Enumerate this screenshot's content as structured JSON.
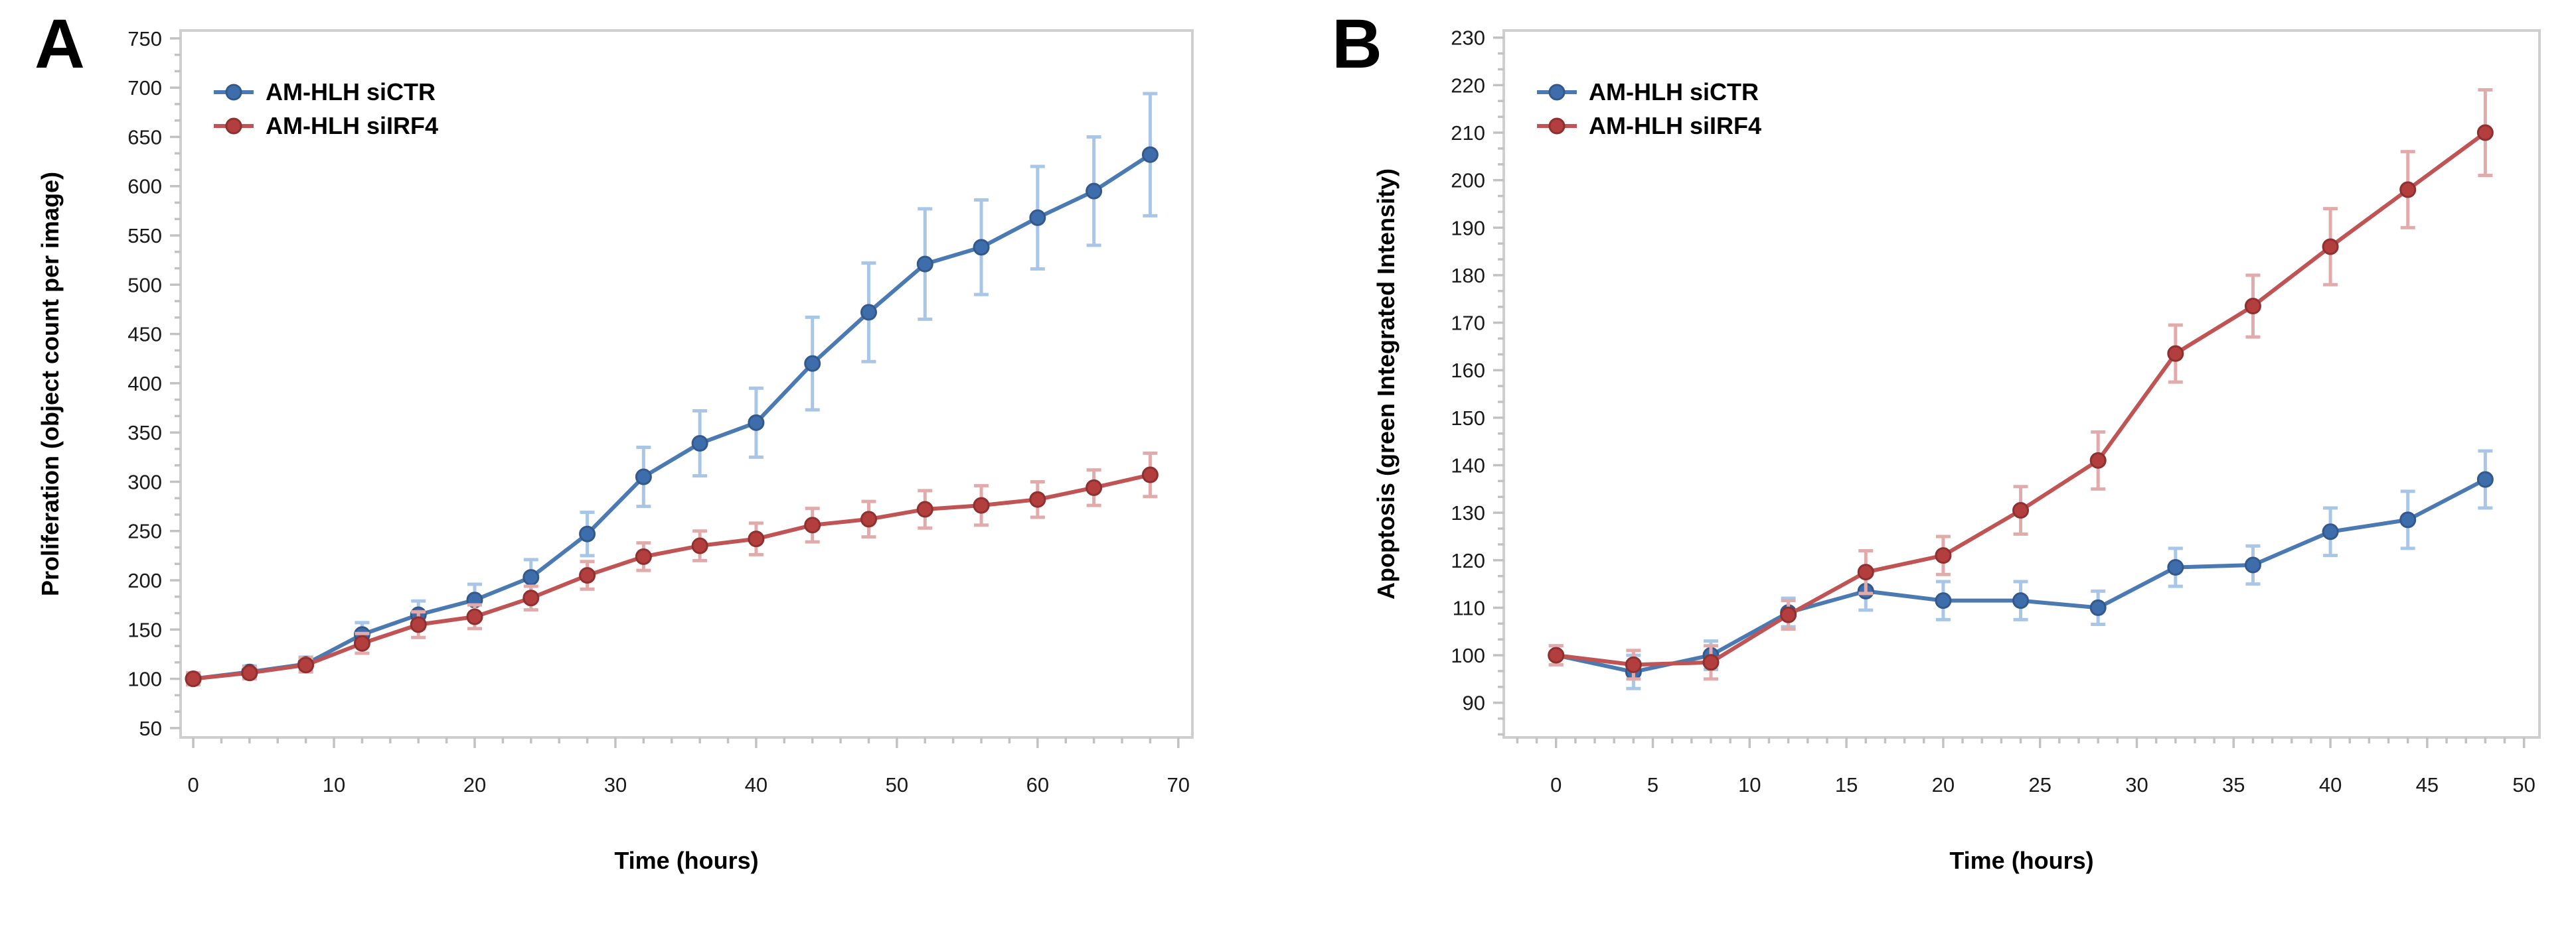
{
  "page": {
    "background": "#ffffff",
    "border_color": "#cfcfcf",
    "tick_color": "#c2c2c2",
    "tick_label_color": "#1a1a1a"
  },
  "chart_data": [
    {
      "type": "line",
      "panel_letter": "A",
      "xlabel": "Time (hours)",
      "ylabel": "Proliferation (object count per image)",
      "x": [
        0,
        4,
        8,
        12,
        16,
        20,
        24,
        28,
        32,
        36,
        40,
        44,
        48,
        52,
        56,
        60,
        64,
        68
      ],
      "series": [
        {
          "name": "AM-HLH siCTR",
          "values": [
            100,
            107,
            115,
            145,
            165,
            180,
            203,
            247,
            305,
            339,
            360,
            420,
            472,
            521,
            538,
            568,
            595,
            632
          ],
          "errors": [
            5,
            6,
            7,
            12,
            14,
            16,
            18,
            22,
            30,
            33,
            35,
            47,
            50,
            56,
            48,
            52,
            55,
            62
          ],
          "marker_color": "#3e6dab",
          "marker_edge": "#33598c",
          "line_color": "#4b7ab3",
          "error_color": "#a9c6e6"
        },
        {
          "name": "AM-HLH siIRF4",
          "values": [
            100,
            106,
            114,
            136,
            155,
            163,
            182,
            205,
            224,
            235,
            242,
            256,
            262,
            272,
            276,
            282,
            294,
            307
          ],
          "errors": [
            6,
            6,
            7,
            10,
            13,
            12,
            12,
            14,
            14,
            15,
            16,
            17,
            18,
            19,
            20,
            18,
            18,
            22
          ],
          "marker_color": "#b23e3e",
          "marker_edge": "#8f3030",
          "line_color": "#c05353",
          "error_color": "#e2abab"
        }
      ],
      "xlim": [
        -0.9,
        71
      ],
      "ylim": [
        40.5,
        758
      ],
      "x_major_ticks": [
        0,
        10,
        20,
        30,
        40,
        50,
        60,
        70
      ],
      "x_minor_divisions": 5,
      "y_major_ticks": [
        50,
        100,
        150,
        200,
        250,
        300,
        350,
        400,
        450,
        500,
        550,
        600,
        650,
        700,
        750
      ],
      "y_minor_divisions": 3,
      "grid": false,
      "legend_position": "top-left"
    },
    {
      "type": "line",
      "panel_letter": "B",
      "xlabel": "Time (hours)",
      "ylabel": "Apoptosis (green Integrated Intensity)",
      "x": [
        0,
        4,
        8,
        12,
        16,
        20,
        24,
        28,
        32,
        36,
        40,
        44,
        48
      ],
      "series": [
        {
          "name": "AM-HLH siCTR",
          "values": [
            100,
            96.5,
            100,
            109,
            113.5,
            111.5,
            111.5,
            110,
            118.5,
            119,
            126,
            128.5,
            137
          ],
          "errors": [
            2,
            3.5,
            3,
            3,
            4,
            4,
            4,
            3.5,
            4,
            4,
            5,
            6,
            6
          ],
          "marker_color": "#3e6dab",
          "marker_edge": "#33598c",
          "line_color": "#4b7ab3",
          "error_color": "#a9c6e6"
        },
        {
          "name": "AM-HLH siIRF4",
          "values": [
            100,
            98,
            98.5,
            108.5,
            117.5,
            121,
            130.5,
            141,
            163.5,
            173.5,
            186,
            198,
            210
          ],
          "errors": [
            2,
            3,
            3.5,
            3,
            4.5,
            4,
            5,
            6,
            6,
            6.5,
            8,
            8,
            9
          ],
          "marker_color": "#b23e3e",
          "marker_edge": "#8f3030",
          "line_color": "#c05353",
          "error_color": "#e2abab"
        }
      ],
      "xlim": [
        -2.7,
        50.8
      ],
      "ylim": [
        82.7,
        231.5
      ],
      "x_major_ticks": [
        0,
        5,
        10,
        15,
        20,
        25,
        30,
        35,
        40,
        45,
        50
      ],
      "x_minor_divisions": 5,
      "y_major_ticks": [
        90,
        100,
        110,
        120,
        130,
        140,
        150,
        160,
        170,
        180,
        190,
        200,
        210,
        220,
        230
      ],
      "y_minor_divisions": 3,
      "grid": false,
      "legend_position": "top-left"
    }
  ]
}
